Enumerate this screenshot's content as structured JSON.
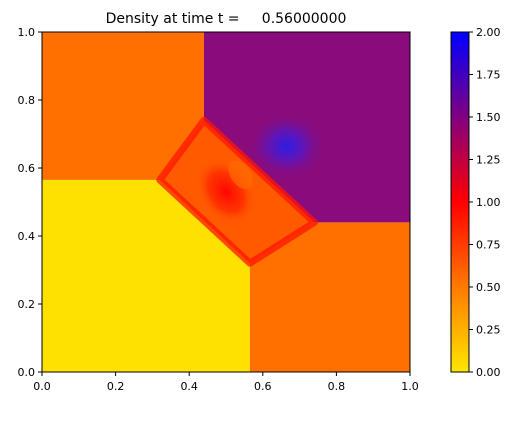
{
  "chart_data": {
    "type": "heatmap",
    "title": "Density at time t =     0.56000000",
    "xlabel": "",
    "ylabel": "",
    "xlim": [
      0,
      1
    ],
    "ylim": [
      0,
      1
    ],
    "x_ticks": [
      "0.0",
      "0.2",
      "0.4",
      "0.6",
      "0.8",
      "1.0"
    ],
    "y_ticks": [
      "0.0",
      "0.2",
      "0.4",
      "0.6",
      "0.8",
      "1.0"
    ],
    "colorbar": {
      "range": [
        0,
        2
      ],
      "ticks": [
        "0.00",
        "0.25",
        "0.50",
        "0.75",
        "1.00",
        "1.25",
        "1.50",
        "1.75",
        "2.00"
      ],
      "colormap": [
        "#ffe600",
        "#ff7a00",
        "#ff0000",
        "#800080",
        "#0000ff"
      ]
    },
    "regions": [
      {
        "name": "bottom-left",
        "value": 0.14,
        "color": "#ffe100",
        "polygon": [
          [
            0,
            0
          ],
          [
            0.565,
            0
          ],
          [
            0.565,
            0.32
          ],
          [
            0.32,
            0.565
          ],
          [
            0,
            0.565
          ]
        ]
      },
      {
        "name": "bottom-right",
        "value": 0.58,
        "color": "#ff7000",
        "polygon": [
          [
            0.565,
            0
          ],
          [
            1,
            0
          ],
          [
            1,
            0.44
          ],
          [
            0.74,
            0.44
          ],
          [
            0.565,
            0.32
          ]
        ]
      },
      {
        "name": "top-left",
        "value": 0.58,
        "color": "#ff7000",
        "polygon": [
          [
            0,
            0.565
          ],
          [
            0.32,
            0.565
          ],
          [
            0.44,
            0.74
          ],
          [
            0.44,
            1
          ],
          [
            0,
            1
          ]
        ]
      },
      {
        "name": "top-right",
        "value": 1.4,
        "color": "#8a0c7c",
        "polygon": [
          [
            0.44,
            0.74
          ],
          [
            0.44,
            1
          ],
          [
            1,
            1
          ],
          [
            1,
            0.44
          ],
          [
            0.74,
            0.44
          ]
        ]
      },
      {
        "name": "center",
        "value": 0.75,
        "color": "#ff5a00",
        "polygon": [
          [
            0.32,
            0.565
          ],
          [
            0.44,
            0.74
          ],
          [
            0.74,
            0.44
          ],
          [
            0.565,
            0.32
          ]
        ]
      }
    ],
    "features": [
      {
        "name": "dense-blue-blob",
        "x": 0.665,
        "y": 0.665,
        "value": 1.8
      },
      {
        "name": "red-vortex",
        "x": 0.5,
        "y": 0.53,
        "value": 1.05
      }
    ]
  }
}
